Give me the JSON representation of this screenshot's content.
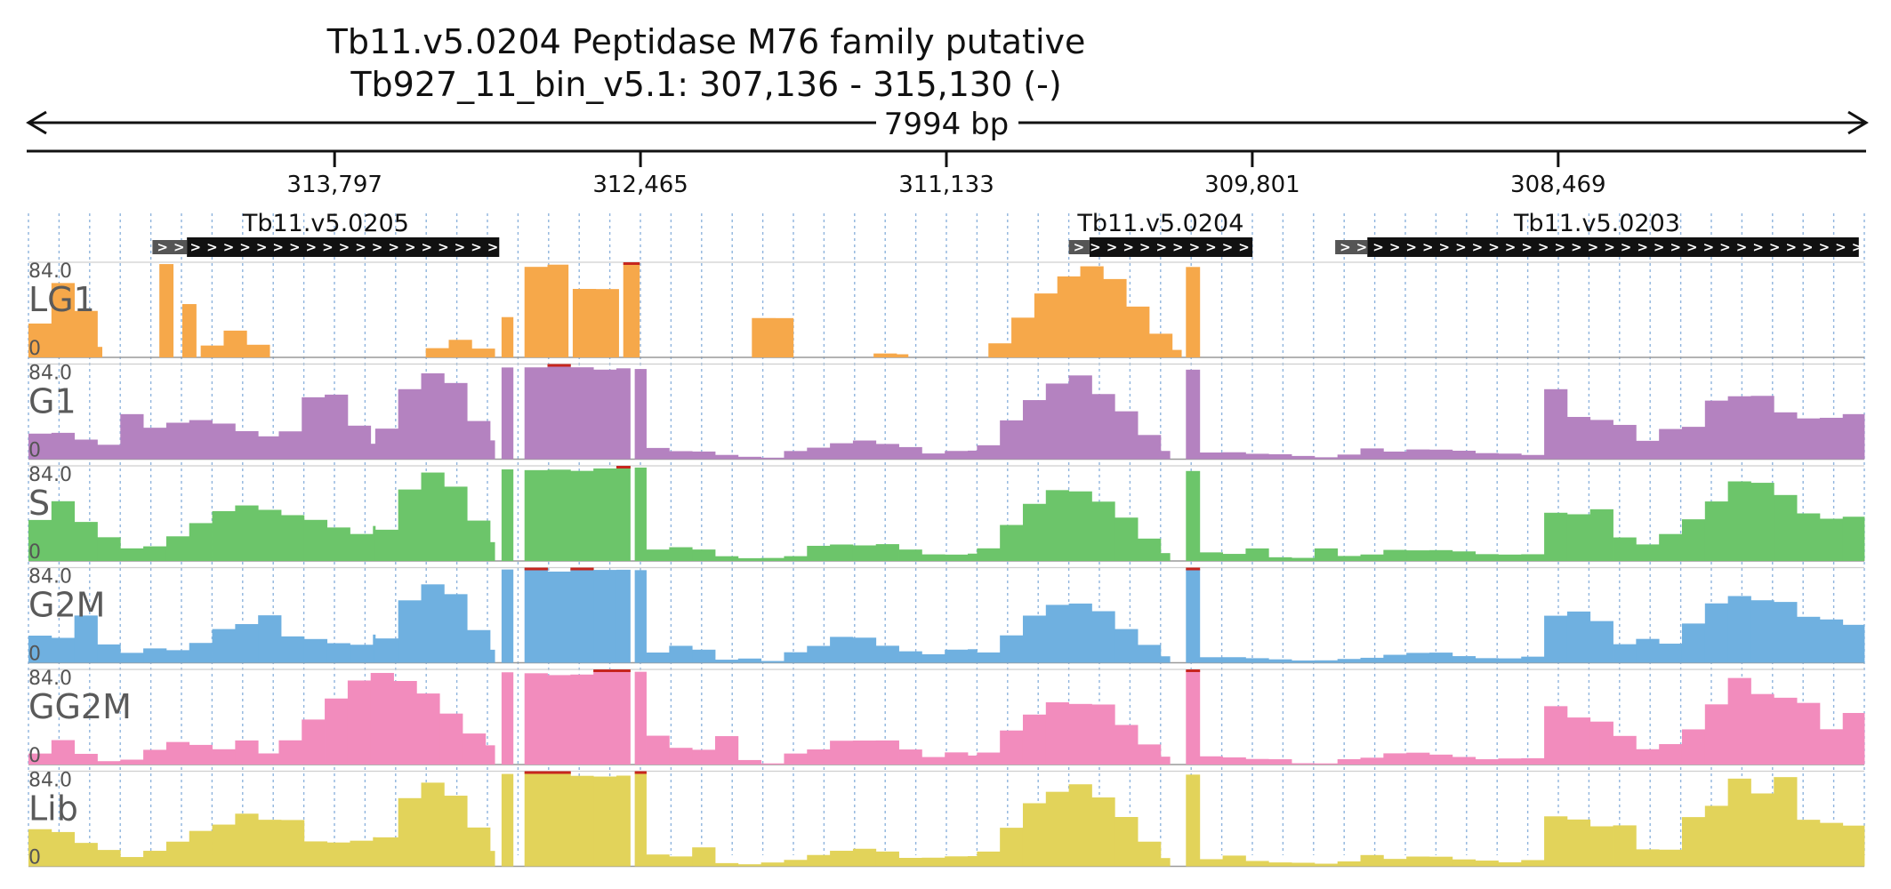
{
  "title_line1": "Tb11.v5.0204  Peptidase M76 family  putative",
  "title_line2": "Tb927_11_bin_v5.1: 307,136 - 315,130 (-)",
  "span_label": "7994 bp",
  "ruler": {
    "start": 315130,
    "end": 307136,
    "ticks": [
      {
        "value": 313797,
        "label": "313,797"
      },
      {
        "value": 312465,
        "label": "312,465"
      },
      {
        "value": 311133,
        "label": "311,133"
      },
      {
        "value": 309801,
        "label": "309,801"
      },
      {
        "value": 308469,
        "label": "308,469"
      }
    ]
  },
  "genes": [
    {
      "name": "Tb11.v5.0205",
      "utr_start": 314590,
      "start": 314440,
      "end": 313080,
      "strand": "-"
    },
    {
      "name": "Tb11.v5.0204",
      "utr_start": 310600,
      "start": 310510,
      "end": 309800,
      "strand": "-"
    },
    {
      "name": "Tb11.v5.0203",
      "utr_start": 309440,
      "start": 309300,
      "end": 307160,
      "strand": "-"
    }
  ],
  "colors": {
    "LG1": "#f6a84a",
    "G1": "#b482c0",
    "S": "#6cc56a",
    "G2M": "#6fb0e0",
    "GG2M": "#f28cbd",
    "Lib": "#e2d35a",
    "clip": "#c6261e"
  },
  "chart_data": {
    "type": "area",
    "x_label_unit": "genomic position (bp)",
    "xlim": [
      315130,
      307136
    ],
    "ylim": [
      0,
      84.0
    ],
    "y_max_label": "84.0",
    "y_min_label": "0",
    "grid": true,
    "bin_size": 100,
    "series": [
      {
        "name": "LG1",
        "segments": [
          {
            "start": 315130,
            "end": 314810,
            "shape": "hump",
            "peak": 73,
            "base": 6
          },
          {
            "start": 314560,
            "end": 314500,
            "shape": "flat",
            "peak": 84
          },
          {
            "start": 314460,
            "end": 314400,
            "shape": "flat",
            "peak": 48
          },
          {
            "start": 314380,
            "end": 314080,
            "shape": "hump",
            "peak": 24,
            "base": 3
          },
          {
            "start": 313400,
            "end": 313100,
            "shape": "hump",
            "peak": 16,
            "base": 3
          },
          {
            "start": 313070,
            "end": 313020,
            "shape": "flat",
            "peak": 36
          },
          {
            "start": 312970,
            "end": 312780,
            "shape": "flat",
            "peak": 84
          },
          {
            "start": 312760,
            "end": 312560,
            "shape": "hump",
            "peak": 84,
            "base": 30
          },
          {
            "start": 312540,
            "end": 312470,
            "shape": "flat",
            "peak": 84
          },
          {
            "start": 311980,
            "end": 311800,
            "shape": "flat",
            "peak": 35
          },
          {
            "start": 311450,
            "end": 311300,
            "shape": "hump",
            "peak": 4,
            "base": 2
          },
          {
            "start": 310950,
            "end": 310110,
            "shape": "hump",
            "peak": 82,
            "base": 4
          },
          {
            "start": 310090,
            "end": 310030,
            "shape": "flat",
            "peak": 84
          }
        ]
      },
      {
        "name": "G1",
        "segments": [
          {
            "start": 315130,
            "end": 314040,
            "shape": "rough",
            "peak": 42,
            "base": 12
          },
          {
            "start": 314040,
            "end": 313620,
            "shape": "hump",
            "peak": 62,
            "base": 12
          },
          {
            "start": 313620,
            "end": 313100,
            "shape": "hump",
            "peak": 82,
            "base": 15
          },
          {
            "start": 313070,
            "end": 313020,
            "shape": "flat",
            "peak": 84
          },
          {
            "start": 312970,
            "end": 312510,
            "shape": "flat",
            "peak": 84
          },
          {
            "start": 312490,
            "end": 312440,
            "shape": "flat",
            "peak": 84
          },
          {
            "start": 312440,
            "end": 311000,
            "shape": "rough",
            "peak": 18,
            "base": 2
          },
          {
            "start": 311000,
            "end": 310160,
            "shape": "hump",
            "peak": 75,
            "base": 5
          },
          {
            "start": 310090,
            "end": 310030,
            "shape": "flat",
            "peak": 84
          },
          {
            "start": 310030,
            "end": 308530,
            "shape": "rough",
            "peak": 10,
            "base": 2
          },
          {
            "start": 308530,
            "end": 307136,
            "shape": "rough",
            "peak": 68,
            "base": 18
          }
        ]
      },
      {
        "name": "S",
        "segments": [
          {
            "start": 315130,
            "end": 313620,
            "shape": "rough",
            "peak": 55,
            "base": 15
          },
          {
            "start": 313620,
            "end": 313100,
            "shape": "hump",
            "peak": 84,
            "base": 15
          },
          {
            "start": 313070,
            "end": 313020,
            "shape": "flat",
            "peak": 84
          },
          {
            "start": 312970,
            "end": 312510,
            "shape": "flat",
            "peak": 84
          },
          {
            "start": 312490,
            "end": 312440,
            "shape": "flat",
            "peak": 84
          },
          {
            "start": 312440,
            "end": 311000,
            "shape": "rough",
            "peak": 20,
            "base": 2
          },
          {
            "start": 311000,
            "end": 310160,
            "shape": "hump",
            "peak": 68,
            "base": 5
          },
          {
            "start": 310090,
            "end": 310030,
            "shape": "flat",
            "peak": 84
          },
          {
            "start": 310030,
            "end": 308530,
            "shape": "rough",
            "peak": 12,
            "base": 2
          },
          {
            "start": 308530,
            "end": 307136,
            "shape": "rough",
            "peak": 80,
            "base": 20
          }
        ]
      },
      {
        "name": "G2M",
        "segments": [
          {
            "start": 315130,
            "end": 313620,
            "shape": "rough",
            "peak": 42,
            "base": 8
          },
          {
            "start": 313620,
            "end": 313100,
            "shape": "hump",
            "peak": 72,
            "base": 10
          },
          {
            "start": 313070,
            "end": 313020,
            "shape": "flat",
            "peak": 84
          },
          {
            "start": 312970,
            "end": 312510,
            "shape": "flat",
            "peak": 84
          },
          {
            "start": 312490,
            "end": 312440,
            "shape": "flat",
            "peak": 84
          },
          {
            "start": 312440,
            "end": 311000,
            "shape": "rough",
            "peak": 24,
            "base": 2
          },
          {
            "start": 311000,
            "end": 310160,
            "shape": "hump",
            "peak": 55,
            "base": 4
          },
          {
            "start": 310090,
            "end": 310030,
            "shape": "flat",
            "peak": 84
          },
          {
            "start": 310030,
            "end": 308530,
            "shape": "rough",
            "peak": 10,
            "base": 2
          },
          {
            "start": 308530,
            "end": 307136,
            "shape": "rough",
            "peak": 76,
            "base": 14
          }
        ]
      },
      {
        "name": "GG2M",
        "segments": [
          {
            "start": 315130,
            "end": 314040,
            "shape": "rough",
            "peak": 22,
            "base": 4
          },
          {
            "start": 314040,
            "end": 313100,
            "shape": "hump",
            "peak": 84,
            "base": 15
          },
          {
            "start": 313070,
            "end": 313020,
            "shape": "flat",
            "peak": 84
          },
          {
            "start": 312970,
            "end": 312510,
            "shape": "flat",
            "peak": 84
          },
          {
            "start": 312490,
            "end": 312440,
            "shape": "flat",
            "peak": 84
          },
          {
            "start": 312440,
            "end": 311000,
            "shape": "rough",
            "peak": 26,
            "base": 2
          },
          {
            "start": 311000,
            "end": 310160,
            "shape": "hump",
            "peak": 62,
            "base": 5
          },
          {
            "start": 310090,
            "end": 310030,
            "shape": "flat",
            "peak": 84
          },
          {
            "start": 310030,
            "end": 308530,
            "shape": "rough",
            "peak": 12,
            "base": 2
          },
          {
            "start": 308530,
            "end": 307136,
            "shape": "rough",
            "peak": 84,
            "base": 20
          }
        ]
      },
      {
        "name": "Lib",
        "segments": [
          {
            "start": 315130,
            "end": 313620,
            "shape": "rough",
            "peak": 56,
            "base": 10
          },
          {
            "start": 313620,
            "end": 313100,
            "shape": "hump",
            "peak": 84,
            "base": 12
          },
          {
            "start": 313070,
            "end": 313020,
            "shape": "flat",
            "peak": 84
          },
          {
            "start": 312970,
            "end": 312510,
            "shape": "flat",
            "peak": 84
          },
          {
            "start": 312490,
            "end": 312440,
            "shape": "flat",
            "peak": 84
          },
          {
            "start": 312440,
            "end": 311000,
            "shape": "rough",
            "peak": 18,
            "base": 2
          },
          {
            "start": 311000,
            "end": 310160,
            "shape": "hump",
            "peak": 78,
            "base": 5
          },
          {
            "start": 310090,
            "end": 310030,
            "shape": "flat",
            "peak": 84
          },
          {
            "start": 310030,
            "end": 308530,
            "shape": "rough",
            "peak": 10,
            "base": 2
          },
          {
            "start": 308530,
            "end": 307136,
            "shape": "rough",
            "peak": 84,
            "base": 20
          }
        ]
      }
    ]
  }
}
